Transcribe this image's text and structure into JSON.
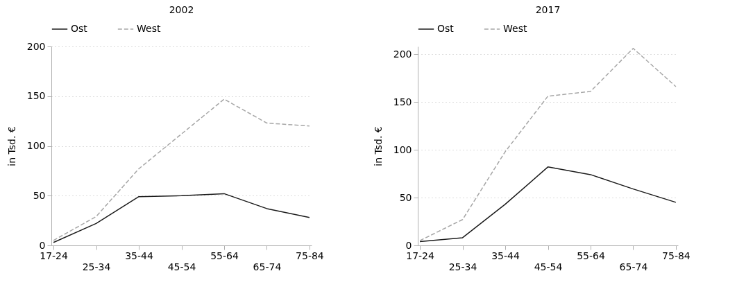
{
  "chart_data": [
    {
      "type": "line",
      "title": "2002",
      "ylabel": "in Tsd. €",
      "categories": [
        "17-24",
        "25-34",
        "35-44",
        "45-54",
        "55-64",
        "65-74",
        "75-84"
      ],
      "ylim": [
        0,
        200
      ],
      "yticks": [
        0,
        50,
        100,
        150,
        200
      ],
      "grid": "y",
      "legend": "top",
      "series": [
        {
          "name": "Ost",
          "color": "#1a1a1a",
          "line_style": "solid",
          "values": [
            3,
            22,
            49,
            50,
            52,
            37,
            28
          ]
        },
        {
          "name": "West",
          "color": "#a6a6a6",
          "line_style": "dashed",
          "values": [
            5,
            29,
            77,
            112,
            147,
            123,
            120
          ]
        }
      ]
    },
    {
      "type": "line",
      "title": "2017",
      "ylabel": "in Tsd. €",
      "categories": [
        "17-24",
        "25-34",
        "35-44",
        "45-54",
        "55-64",
        "65-74",
        "75-84"
      ],
      "ylim": [
        0,
        208
      ],
      "yticks": [
        0,
        50,
        100,
        150,
        200
      ],
      "grid": "y",
      "legend": "top",
      "series": [
        {
          "name": "Ost",
          "color": "#1a1a1a",
          "line_style": "solid",
          "values": [
            4,
            8,
            43,
            82,
            74,
            59,
            45
          ]
        },
        {
          "name": "West",
          "color": "#a6a6a6",
          "line_style": "dashed",
          "values": [
            5,
            27,
            98,
            156,
            161,
            206,
            166
          ]
        }
      ]
    }
  ]
}
